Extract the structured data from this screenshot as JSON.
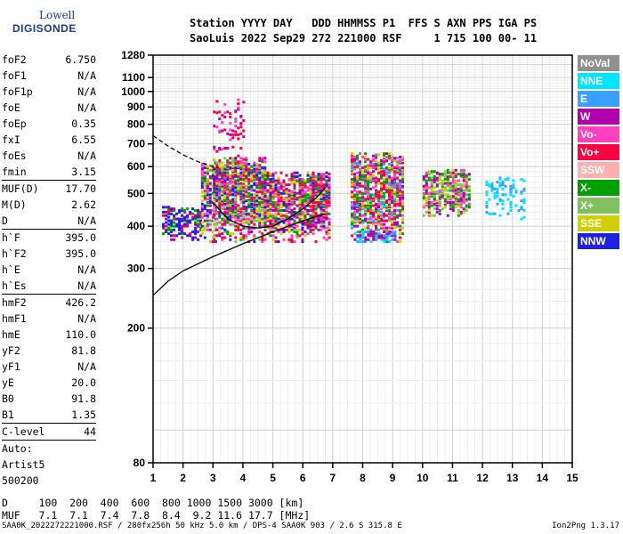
{
  "logo": {
    "line1": "Lowell",
    "line2": "DIGISONDE"
  },
  "header": {
    "line1": "Station YYYY DAY   DDD HHMMSS P1  FFS S AXN PPS IGA PS",
    "line2": "SaoLuis 2022 Sep29 272 221000 RSF     1 715 100 00- 11"
  },
  "params_group1": [
    {
      "name": "foF2",
      "value": "6.750"
    },
    {
      "name": "foF1",
      "value": "N/A"
    },
    {
      "name": "foF1p",
      "value": "N/A"
    },
    {
      "name": "foE",
      "value": "N/A"
    },
    {
      "name": "foEp",
      "value": "0.35"
    },
    {
      "name": "fxI",
      "value": "6.55"
    },
    {
      "name": "foEs",
      "value": "N/A"
    },
    {
      "name": "fmin",
      "value": "3.15"
    }
  ],
  "params_group2": [
    {
      "name": "MUF(D)",
      "value": "17.70"
    },
    {
      "name": "M(D)",
      "value": "2.62"
    },
    {
      "name": "D",
      "value": "N/A"
    }
  ],
  "params_group3": [
    {
      "name": "h`F",
      "value": "395.0"
    },
    {
      "name": "h`F2",
      "value": "395.0"
    },
    {
      "name": "h`E",
      "value": "N/A"
    },
    {
      "name": "h`Es",
      "value": "N/A"
    }
  ],
  "params_group4": [
    {
      "name": "hmF2",
      "value": "426.2"
    },
    {
      "name": "hmF1",
      "value": "N/A"
    },
    {
      "name": "hmE",
      "value": "110.0"
    },
    {
      "name": "yF2",
      "value": "81.8"
    },
    {
      "name": "yF1",
      "value": "N/A"
    },
    {
      "name": "yE",
      "value": "20.0"
    },
    {
      "name": "B0",
      "value": "91.8"
    },
    {
      "name": "B1",
      "value": "1.35"
    }
  ],
  "params_group5": [
    {
      "name": "C-level",
      "value": "44"
    }
  ],
  "autoscaler": {
    "line1": "Auto:",
    "line2": "Artist5",
    "line3": "500200"
  },
  "legend": [
    {
      "label": "NoVal",
      "color": "#909090"
    },
    {
      "label": "NNE",
      "color": "#00e5ff"
    },
    {
      "label": "E",
      "color": "#3aa0ff"
    },
    {
      "label": "W",
      "color": "#b000b0"
    },
    {
      "label": "Vo-",
      "color": "#ff40c0"
    },
    {
      "label": "Vo+",
      "color": "#ff0040"
    },
    {
      "label": "SSW",
      "color": "#ffb0b0"
    },
    {
      "label": "X-",
      "color": "#00a000"
    },
    {
      "label": "X+",
      "color": "#80c060"
    },
    {
      "label": "SSE",
      "color": "#d0d000"
    },
    {
      "label": "NNW",
      "color": "#2020e0"
    }
  ],
  "muf_table": {
    "line1": "D     100  200  400  600  800 1000 1500 3000 [km]",
    "line2": "MUF   7.1  7.1  7.4  7.8  8.4  9.2 11.6 17.7 [MHz]"
  },
  "footer": {
    "left": "SAA0K_2022272221000.RSF / 280fx256h 50 kHz 5.0 km / DPS-4 SAA0K 903 / 2.6 S 315.8 E",
    "right": "Ion2Png 1.3.17"
  },
  "chart_data": {
    "type": "scatter",
    "title": "",
    "xlabel": "",
    "ylabel": "",
    "xlim": [
      1,
      15
    ],
    "ylim": [
      80,
      1280
    ],
    "y_scale": "log",
    "x_ticks": [
      1,
      2,
      3,
      4,
      5,
      6,
      7,
      8,
      9,
      10,
      11,
      12,
      13,
      14,
      15
    ],
    "y_ticks": [
      80,
      200,
      300,
      400,
      500,
      600,
      700,
      800,
      900,
      1000,
      1100,
      1280
    ],
    "grid": true,
    "legend_position": "right",
    "echo_clusters": [
      {
        "f": [
          1.3,
          2.6
        ],
        "h": [
          365,
          460
        ],
        "density": 0.55,
        "colors": [
          "#2020e0",
          "#2020e0",
          "#2020e0",
          "#b000b0",
          "#ff0040",
          "#00a000"
        ]
      },
      {
        "f": [
          2.6,
          3.1
        ],
        "h": [
          360,
          620
        ],
        "density": 0.5,
        "colors": [
          "#2020e0",
          "#b000b0",
          "#ff40c0",
          "#00a000",
          "#d0d000"
        ]
      },
      {
        "f": [
          3.0,
          4.7
        ],
        "h": [
          360,
          640
        ],
        "density": 0.7,
        "colors": [
          "#b000b0",
          "#ff40c0",
          "#ff0040",
          "#2020e0",
          "#00a000",
          "#80c060",
          "#d0d000"
        ]
      },
      {
        "f": [
          3.0,
          4.0
        ],
        "h": [
          640,
          950
        ],
        "density": 0.08,
        "colors": [
          "#b000b0",
          "#ff0040",
          "#ff40c0"
        ]
      },
      {
        "f": [
          4.7,
          6.9
        ],
        "h": [
          360,
          580
        ],
        "density": 0.65,
        "colors": [
          "#b000b0",
          "#ff40c0",
          "#ff0040",
          "#2020e0",
          "#00a000",
          "#d0d000"
        ]
      },
      {
        "f": [
          7.6,
          9.3
        ],
        "h": [
          360,
          660
        ],
        "density": 0.6,
        "colors": [
          "#b000b0",
          "#ff40c0",
          "#ff0040",
          "#3aa0ff",
          "#00a000",
          "#d0d000"
        ]
      },
      {
        "f": [
          7.7,
          9.1
        ],
        "h": [
          360,
          390
        ],
        "density": 0.7,
        "colors": [
          "#3aa0ff",
          "#00e5ff",
          "#b000b0"
        ]
      },
      {
        "f": [
          10.0,
          11.6
        ],
        "h": [
          430,
          590
        ],
        "density": 0.6,
        "colors": [
          "#d0d000",
          "#00a000",
          "#80c060",
          "#ff40c0",
          "#b000b0"
        ]
      },
      {
        "f": [
          12.1,
          13.4
        ],
        "h": [
          420,
          560
        ],
        "density": 0.2,
        "colors": [
          "#00e5ff",
          "#3aa0ff",
          "#00e5ff"
        ]
      }
    ],
    "curves": [
      {
        "name": "",
        "style": "solid",
        "f": [
          1.0,
          1.5,
          2.0,
          3.0,
          4.0,
          5.0,
          6.0,
          6.75
        ],
        "h": [
          250,
          275,
          295,
          325,
          355,
          385,
          415,
          435
        ]
      },
      {
        "name": "",
        "style": "solid",
        "f": [
          3.0,
          3.5,
          4.0,
          4.5,
          5.0,
          5.5,
          6.0,
          6.5,
          6.75
        ],
        "h": [
          470,
          420,
          400,
          395,
          400,
          420,
          450,
          490,
          520
        ]
      },
      {
        "name": "",
        "style": "dashed",
        "f": [
          1.0,
          1.5,
          2.0,
          2.5,
          3.0,
          3.2
        ],
        "h": [
          740,
          690,
          650,
          620,
          600,
          595
        ]
      }
    ]
  }
}
